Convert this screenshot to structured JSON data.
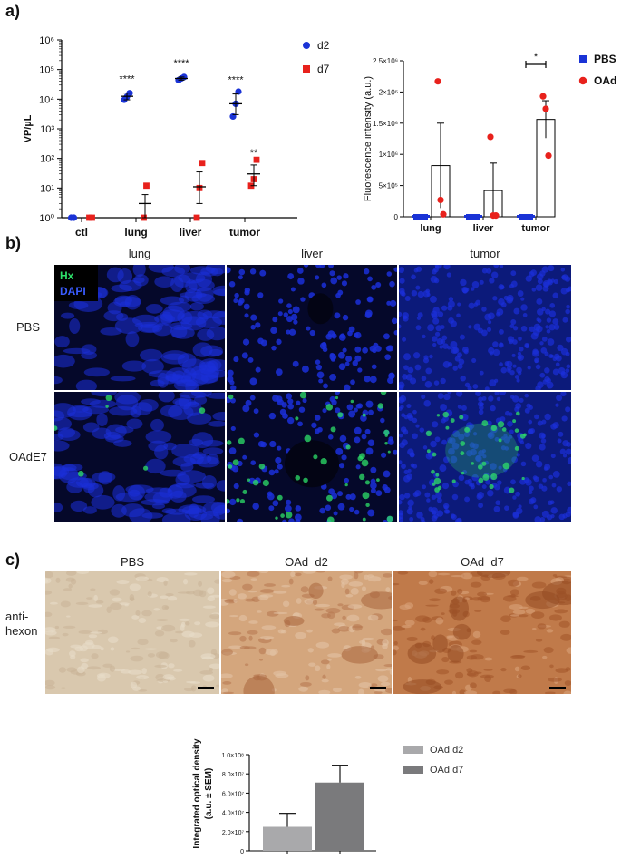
{
  "panels": {
    "a_label": "a)",
    "b_label": "b)",
    "c_label": "c)"
  },
  "chart_data": [
    {
      "type": "scatter",
      "ylabel": "VP/µL",
      "yscale": "log",
      "ylim": [
        1,
        1000000
      ],
      "yticks": [
        "10⁰",
        "10¹",
        "10²",
        "10³",
        "10⁴",
        "10⁵",
        "10⁶"
      ],
      "categories": [
        "ctl",
        "lung",
        "liver",
        "tumor"
      ],
      "legend_position": "top-right",
      "series": [
        {
          "name": "d2",
          "color": "#1a33d6",
          "marker": "circle",
          "points": [
            [
              0,
              [
                1,
                1
              ]
            ],
            [
              1,
              [
                9500,
                12000,
                16000
              ]
            ],
            [
              2,
              [
                44000,
                50000,
                56000
              ]
            ],
            [
              3,
              [
                2600,
                7000,
                18000
              ]
            ]
          ],
          "mean": [
            1,
            12500,
            50000,
            7000
          ],
          "err_low": [
            1,
            9500,
            44000,
            3000
          ],
          "err_high": [
            1,
            16000,
            56000,
            15000
          ]
        },
        {
          "name": "d7",
          "color": "#e8211c",
          "marker": "square",
          "points": [
            [
              0,
              [
                1,
                1
              ]
            ],
            [
              1,
              [
                1,
                12
              ]
            ],
            [
              2,
              [
                1,
                10,
                70
              ]
            ],
            [
              3,
              [
                12,
                20,
                90
              ]
            ]
          ],
          "mean": [
            1,
            3,
            11,
            30
          ],
          "err_low": [
            1,
            1,
            3,
            12
          ],
          "err_high": [
            1,
            6,
            35,
            60
          ]
        }
      ],
      "annotations": [
        {
          "category": "lung",
          "series": "d2",
          "text": "****"
        },
        {
          "category": "liver",
          "series": "d2",
          "text": "****"
        },
        {
          "category": "tumor",
          "series": "d2",
          "text": "****"
        },
        {
          "category": "tumor",
          "series": "d7",
          "text": "**"
        }
      ]
    },
    {
      "type": "bar",
      "ylabel": "Fluorescence intensity  (a.u.)",
      "ylim": [
        0,
        2500000
      ],
      "yticks": [
        0,
        500000,
        1000000,
        1500000,
        2000000,
        2500000
      ],
      "ytick_labels": [
        "0",
        "5×10⁵",
        "1×10⁶",
        "1.5×10⁶",
        "2×10⁶",
        "2.5×10⁶"
      ],
      "categories": [
        "lung",
        "liver",
        "tumor"
      ],
      "legend_position": "top-right",
      "series": [
        {
          "name": "PBS",
          "color": "#1a33d6",
          "marker": "square",
          "values": [
            0,
            0,
            0
          ],
          "err": [
            0,
            0,
            0
          ],
          "points": [
            [
              0,
              0,
              0
            ],
            [
              0,
              0,
              0
            ],
            [
              0,
              0,
              0
            ]
          ]
        },
        {
          "name": "OAd",
          "color": "#e8211c",
          "marker": "circle",
          "values": [
            820000,
            420000,
            1560000
          ],
          "err": [
            680000,
            440000,
            300000
          ],
          "points": [
            [
              2170000,
              270000,
              40000
            ],
            [
              1280000,
              20000,
              20000
            ],
            [
              1930000,
              1730000,
              980000
            ]
          ]
        }
      ],
      "significance": {
        "category": "tumor",
        "text": "*"
      }
    },
    {
      "type": "bar",
      "ylabel": "Integrated optical density (a.u. ± SEM)",
      "ylim": [
        0,
        100000000
      ],
      "yticks": [
        0,
        20000000,
        40000000,
        60000000,
        80000000,
        100000000
      ],
      "ytick_labels": [
        "0",
        "2.0×10⁷",
        "4.0×10⁷",
        "6.0×10⁷",
        "8.0×10⁷",
        "1.0×10⁸"
      ],
      "categories": [
        "OAd d2",
        "OAd d7"
      ],
      "legend_position": "right",
      "series": [
        {
          "name": "OAd d2",
          "color": "#a9a9ab",
          "value": 25000000,
          "err": 14000000
        },
        {
          "name": "OAd d7",
          "color": "#7a7a7c",
          "value": 71000000,
          "err": 18000000
        }
      ]
    }
  ],
  "panel_b": {
    "columns": [
      "lung",
      "liver",
      "tumor"
    ],
    "rows": [
      "PBS",
      "OAdE7"
    ],
    "stain_hx": "Hx",
    "stain_dapi": "DAPI",
    "colors": {
      "dapi": "#1b2fd8",
      "hx": "#2ee06a",
      "bg": "#05082a"
    }
  },
  "panel_c": {
    "columns": [
      "PBS",
      "OAd  d2",
      "OAd  d7"
    ],
    "row_label": "anti-\nhexon",
    "colors": {
      "pbs": "#d9c8ae",
      "d2": "#d4a67d",
      "d7": "#c07a4a"
    }
  }
}
